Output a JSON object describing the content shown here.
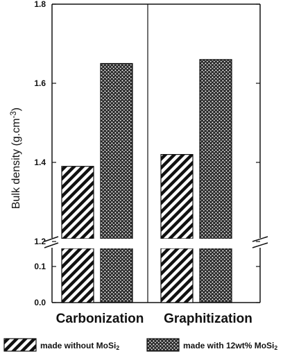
{
  "chart_data": {
    "type": "bar",
    "categories": [
      "Carbonization",
      "Graphitization"
    ],
    "series": [
      {
        "name": "made without MoSi₂",
        "values": [
          1.39,
          1.42
        ],
        "pattern": "hatch"
      },
      {
        "name": "made with 12wt% MoSi₂",
        "values": [
          1.65,
          1.66
        ],
        "pattern": "dots"
      }
    ],
    "ylabel": "Bulk density (g.cm⁻³)",
    "axis_break": true,
    "y_upper_range": [
      1.2,
      1.8
    ],
    "y_lower_range": [
      0.0,
      0.15
    ],
    "y_upper_ticks": [
      "1.2",
      "1.4",
      "1.6",
      "1.8"
    ],
    "y_lower_ticks": [
      "0.0",
      "0.1"
    ],
    "grid": false,
    "legend_position": "bottom",
    "colors": {
      "ink": "#111111",
      "background": "#ffffff"
    }
  }
}
